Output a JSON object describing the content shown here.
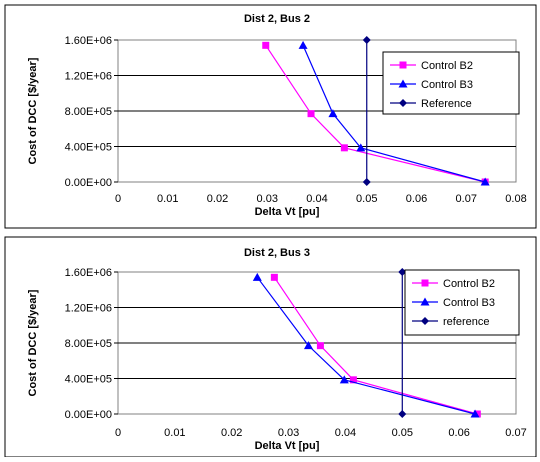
{
  "chart_data": [
    {
      "type": "line",
      "title": "Dist 2, Bus 2",
      "xlabel": "Delta Vt [pu]",
      "ylabel": "Cost of DCC [$/year]",
      "xlim": [
        0,
        0.08
      ],
      "ylim": [
        0,
        1600000
      ],
      "xticks": [
        "0",
        "0.01",
        "0.02",
        "0.03",
        "0.04",
        "0.05",
        "0.06",
        "0.07",
        "0.08"
      ],
      "yticks": [
        "0.00E+00",
        "4.00E+05",
        "8.00E+05",
        "1.20E+06",
        "1.60E+06"
      ],
      "grid": "horizontal",
      "legend_position": "right",
      "series": [
        {
          "name": "Control B2",
          "color": "#ff00ff",
          "marker": "square",
          "points": [
            [
              0.0297,
              1540000
            ],
            [
              0.0388,
              770000
            ],
            [
              0.0455,
              385000
            ],
            [
              0.0738,
              0
            ]
          ]
        },
        {
          "name": "Control B3",
          "color": "#0000ff",
          "marker": "triangle",
          "points": [
            [
              0.0372,
              1540000
            ],
            [
              0.0432,
              770000
            ],
            [
              0.0488,
              385000
            ],
            [
              0.0738,
              0
            ]
          ]
        },
        {
          "name": "Reference",
          "color": "#000080",
          "marker": "diamond",
          "points": [
            [
              0.05,
              1600000
            ],
            [
              0.05,
              0
            ]
          ]
        }
      ]
    },
    {
      "type": "line",
      "title": "Dist 2, Bus 3",
      "xlabel": "Delta Vt [pu]",
      "ylabel": "Cost of DCC [$/year]",
      "xlim": [
        0,
        0.07
      ],
      "ylim": [
        0,
        1600000
      ],
      "xticks": [
        "0",
        "0.01",
        "0.02",
        "0.03",
        "0.04",
        "0.05",
        "0.06",
        "0.07"
      ],
      "yticks": [
        "0.00E+00",
        "4.00E+05",
        "8.00E+05",
        "1.20E+06",
        "1.60E+06"
      ],
      "grid": "horizontal",
      "legend_position": "right",
      "series": [
        {
          "name": "Control B2",
          "color": "#ff00ff",
          "marker": "square",
          "points": [
            [
              0.0275,
              1540000
            ],
            [
              0.0356,
              770000
            ],
            [
              0.0414,
              385000
            ],
            [
              0.0632,
              0
            ]
          ]
        },
        {
          "name": "Control B3",
          "color": "#0000ff",
          "marker": "triangle",
          "points": [
            [
              0.0245,
              1540000
            ],
            [
              0.0335,
              770000
            ],
            [
              0.0398,
              385000
            ],
            [
              0.0628,
              0
            ]
          ]
        },
        {
          "name": "reference",
          "color": "#000080",
          "marker": "diamond",
          "points": [
            [
              0.05,
              1600000
            ],
            [
              0.05,
              0
            ]
          ]
        }
      ]
    }
  ]
}
